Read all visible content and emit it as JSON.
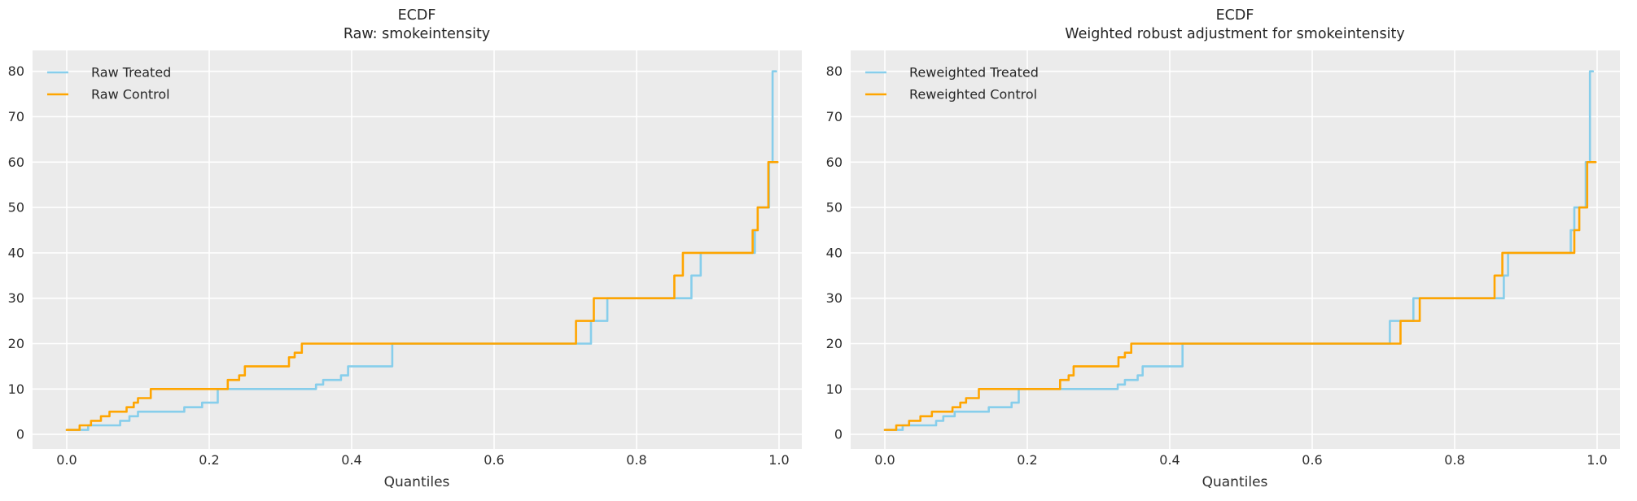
{
  "style": {
    "figure_bg": "#ffffff",
    "axes_bg": "#ebebeb",
    "grid_color": "#ffffff",
    "text_color": "#2f2f2f",
    "title_color": "#262626",
    "treated_color": "#87ceeb",
    "control_color": "#ffa500"
  },
  "chart_data": [
    {
      "type": "line",
      "subtype": "quantile-step-ecdf",
      "title": [
        "ECDF",
        "Raw: smokeintensity"
      ],
      "xlabel": "Quantiles",
      "ylabel": "",
      "x_ticks": [
        0.0,
        0.2,
        0.4,
        0.6,
        0.8,
        1.0
      ],
      "x_tick_labels": [
        "0.0",
        "0.2",
        "0.4",
        "0.6",
        "0.8",
        "1.0"
      ],
      "y_ticks": [
        0,
        10,
        20,
        30,
        40,
        50,
        60,
        70,
        80
      ],
      "xlim": [
        -0.048,
        1.032
      ],
      "ylim": [
        -3.2,
        84.6
      ],
      "grid": true,
      "legend_position": "upper left",
      "series": [
        {
          "name": "Raw Treated",
          "color_role": "treated",
          "steps": [
            [
              0,
              1
            ],
            [
              0.03,
              2
            ],
            [
              0.075,
              3
            ],
            [
              0.088,
              4
            ],
            [
              0.1,
              5
            ],
            [
              0.165,
              6
            ],
            [
              0.19,
              7
            ],
            [
              0.212,
              10
            ],
            [
              0.35,
              11
            ],
            [
              0.36,
              12
            ],
            [
              0.385,
              13
            ],
            [
              0.395,
              15
            ],
            [
              0.457,
              20
            ],
            [
              0.736,
              25
            ],
            [
              0.759,
              30
            ],
            [
              0.877,
              35
            ],
            [
              0.89,
              40
            ],
            [
              0.966,
              45
            ],
            [
              0.97,
              50
            ],
            [
              0.986,
              60
            ],
            [
              0.991,
              80
            ],
            [
              0.996,
              80
            ]
          ]
        },
        {
          "name": "Raw Control",
          "color_role": "control",
          "steps": [
            [
              0,
              1
            ],
            [
              0.018,
              2
            ],
            [
              0.034,
              3
            ],
            [
              0.048,
              4
            ],
            [
              0.06,
              5
            ],
            [
              0.084,
              6
            ],
            [
              0.094,
              7
            ],
            [
              0.1,
              8
            ],
            [
              0.118,
              10
            ],
            [
              0.226,
              12
            ],
            [
              0.242,
              13
            ],
            [
              0.25,
              15
            ],
            [
              0.312,
              17
            ],
            [
              0.32,
              18
            ],
            [
              0.33,
              20
            ],
            [
              0.715,
              25
            ],
            [
              0.74,
              30
            ],
            [
              0.853,
              35
            ],
            [
              0.865,
              40
            ],
            [
              0.963,
              45
            ],
            [
              0.97,
              50
            ],
            [
              0.985,
              60
            ],
            [
              0.998,
              60
            ]
          ]
        }
      ]
    },
    {
      "type": "line",
      "subtype": "quantile-step-ecdf",
      "title": [
        "ECDF",
        "Weighted robust adjustment for smokeintensity"
      ],
      "xlabel": "Quantiles",
      "ylabel": "",
      "x_ticks": [
        0.0,
        0.2,
        0.4,
        0.6,
        0.8,
        1.0
      ],
      "x_tick_labels": [
        "0.0",
        "0.2",
        "0.4",
        "0.6",
        "0.8",
        "1.0"
      ],
      "y_ticks": [
        0,
        10,
        20,
        30,
        40,
        50,
        60,
        70,
        80
      ],
      "xlim": [
        -0.048,
        1.032
      ],
      "ylim": [
        -3.2,
        84.6
      ],
      "grid": true,
      "legend_position": "upper left",
      "series": [
        {
          "name": "Reweighted Treated",
          "color_role": "treated",
          "steps": [
            [
              0,
              1
            ],
            [
              0.025,
              2
            ],
            [
              0.072,
              3
            ],
            [
              0.082,
              4
            ],
            [
              0.098,
              5
            ],
            [
              0.146,
              6
            ],
            [
              0.178,
              7
            ],
            [
              0.188,
              10
            ],
            [
              0.327,
              11
            ],
            [
              0.337,
              12
            ],
            [
              0.355,
              13
            ],
            [
              0.362,
              15
            ],
            [
              0.418,
              20
            ],
            [
              0.709,
              25
            ],
            [
              0.742,
              30
            ],
            [
              0.869,
              35
            ],
            [
              0.875,
              40
            ],
            [
              0.963,
              45
            ],
            [
              0.968,
              50
            ],
            [
              0.984,
              60
            ],
            [
              0.99,
              80
            ],
            [
              0.994,
              80
            ]
          ]
        },
        {
          "name": "Reweighted Control",
          "color_role": "control",
          "steps": [
            [
              0,
              1
            ],
            [
              0.016,
              2
            ],
            [
              0.034,
              3
            ],
            [
              0.05,
              4
            ],
            [
              0.066,
              5
            ],
            [
              0.095,
              6
            ],
            [
              0.106,
              7
            ],
            [
              0.114,
              8
            ],
            [
              0.132,
              10
            ],
            [
              0.246,
              12
            ],
            [
              0.258,
              13
            ],
            [
              0.265,
              15
            ],
            [
              0.328,
              17
            ],
            [
              0.337,
              18
            ],
            [
              0.346,
              20
            ],
            [
              0.724,
              25
            ],
            [
              0.751,
              30
            ],
            [
              0.856,
              35
            ],
            [
              0.867,
              40
            ],
            [
              0.968,
              45
            ],
            [
              0.975,
              50
            ],
            [
              0.986,
              60
            ],
            [
              0.998,
              60
            ]
          ]
        }
      ]
    }
  ]
}
